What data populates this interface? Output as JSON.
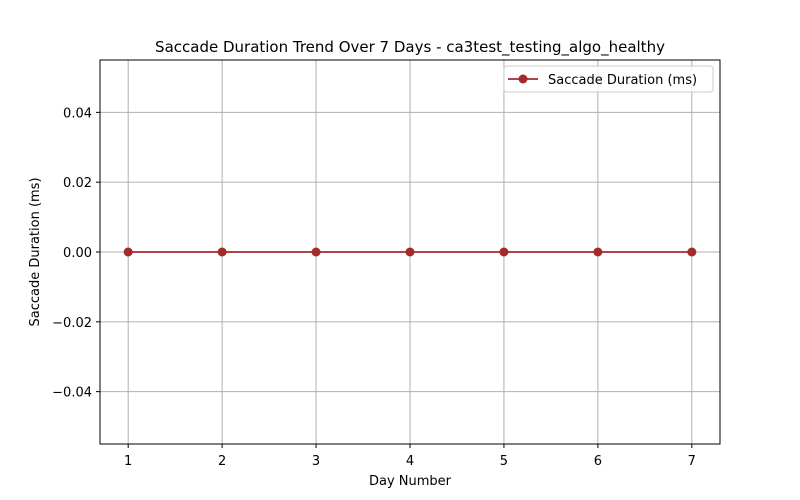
{
  "chart_data": {
    "type": "line",
    "title": "Saccade Duration Trend Over 7 Days - ca3test_testing_algo_healthy",
    "xlabel": "Day Number",
    "ylabel": "Saccade Duration (ms)",
    "x": [
      1,
      2,
      3,
      4,
      5,
      6,
      7
    ],
    "xlim": [
      0.7,
      7.3
    ],
    "ylim": [
      -0.055,
      0.055
    ],
    "xticks": [
      1,
      2,
      3,
      4,
      5,
      6,
      7
    ],
    "xtick_labels": [
      "1",
      "2",
      "3",
      "4",
      "5",
      "6",
      "7"
    ],
    "yticks": [
      0.04,
      0.02,
      0.0,
      -0.02,
      -0.04
    ],
    "ytick_labels": [
      "0.04",
      "0.02",
      "0.00",
      "−0.02",
      "−0.04"
    ],
    "grid": true,
    "legend_position": "top-right",
    "series": [
      {
        "name": "Saccade Duration (ms)",
        "values": [
          0,
          0,
          0,
          0,
          0,
          0,
          0
        ],
        "color": "#a52a2a",
        "marker": "circle"
      }
    ]
  }
}
